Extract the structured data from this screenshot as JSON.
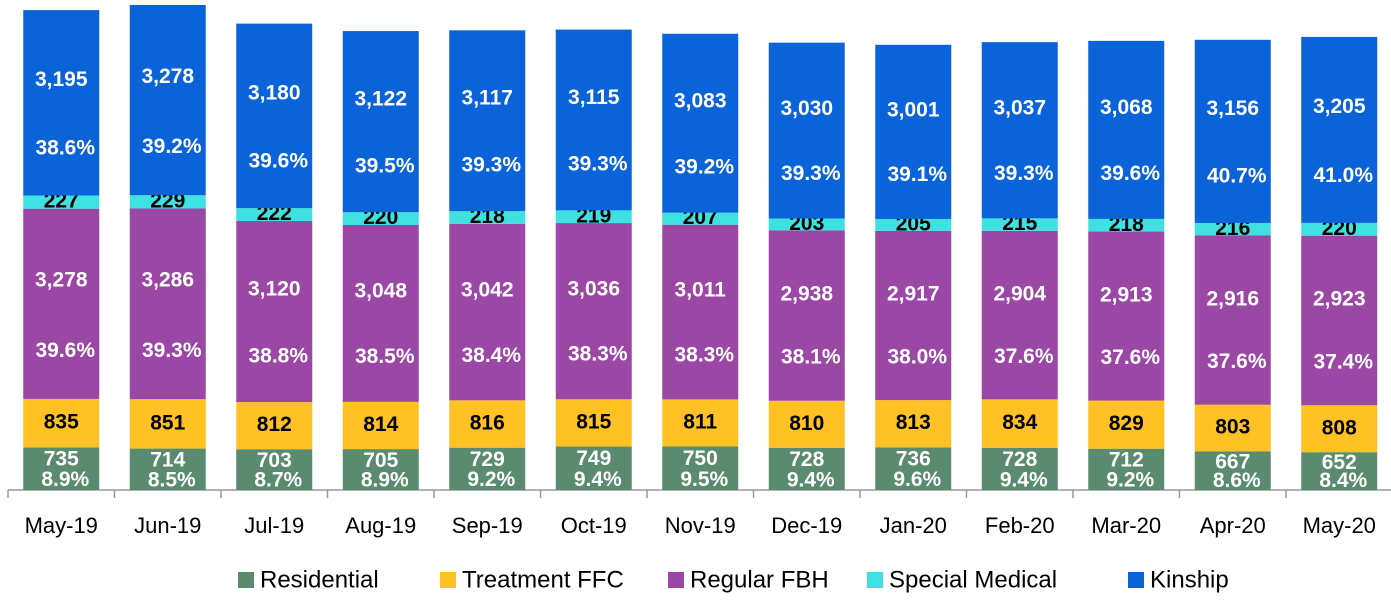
{
  "chart_data": {
    "type": "stacked_bar",
    "categories": [
      "May-19",
      "Jun-19",
      "Jul-19",
      "Aug-19",
      "Sep-19",
      "Oct-19",
      "Nov-19",
      "Dec-19",
      "Jan-20",
      "Feb-20",
      "Mar-20",
      "Apr-20",
      "May-20"
    ],
    "series": [
      {
        "name": "Residential",
        "color": "#5a8b6f",
        "label_color": "#ffffff",
        "values": [
          735,
          714,
          703,
          705,
          729,
          749,
          750,
          728,
          736,
          728,
          712,
          667,
          652
        ],
        "share_labels": [
          "8.9%",
          "8.5%",
          "8.7%",
          "8.9%",
          "9.2%",
          "9.4%",
          "9.5%",
          "9.4%",
          "9.6%",
          "9.4%",
          "9.2%",
          "8.6%",
          "8.4%"
        ]
      },
      {
        "name": "Treatment FFC",
        "color": "#ffc123",
        "label_color": "#000000",
        "values": [
          835,
          851,
          812,
          814,
          816,
          815,
          811,
          810,
          813,
          834,
          829,
          803,
          808
        ]
      },
      {
        "name": "Regular FBH",
        "color": "#9b47a6",
        "label_color": "#ffffff",
        "values": [
          3278,
          3286,
          3120,
          3048,
          3042,
          3036,
          3011,
          2938,
          2917,
          2904,
          2913,
          2916,
          2923
        ],
        "value_labels": [
          "3,278",
          "3,286",
          "3,120",
          "3,048",
          "3,042",
          "3,036",
          "3,011",
          "2,938",
          "2,917",
          "2,904",
          "2,913",
          "2,916",
          "2,923"
        ],
        "share_labels": [
          "39.6%",
          "39.3%",
          "38.8%",
          "38.5%",
          "38.4%",
          "38.3%",
          "38.3%",
          "38.1%",
          "38.0%",
          "37.6%",
          "37.6%",
          "37.6%",
          "37.4%"
        ]
      },
      {
        "name": "Special Medical",
        "color": "#3ee0e0",
        "label_color": "#000000",
        "values": [
          227,
          229,
          222,
          220,
          218,
          219,
          207,
          203,
          205,
          215,
          218,
          216,
          220
        ]
      },
      {
        "name": "Kinship",
        "color": "#0b63d9",
        "label_color": "#ffffff",
        "values": [
          3195,
          3278,
          3180,
          3122,
          3117,
          3115,
          3083,
          3030,
          3001,
          3037,
          3068,
          3156,
          3205
        ],
        "value_labels": [
          "3,195",
          "3,278",
          "3,180",
          "3,122",
          "3,117",
          "3,115",
          "3,083",
          "3,030",
          "3,001",
          "3,037",
          "3,068",
          "3,156",
          "3,205"
        ],
        "share_labels": [
          "38.6%",
          "39.2%",
          "39.6%",
          "39.5%",
          "39.3%",
          "39.3%",
          "39.2%",
          "39.3%",
          "39.1%",
          "39.3%",
          "39.6%",
          "40.7%",
          "41.0%"
        ]
      }
    ]
  }
}
